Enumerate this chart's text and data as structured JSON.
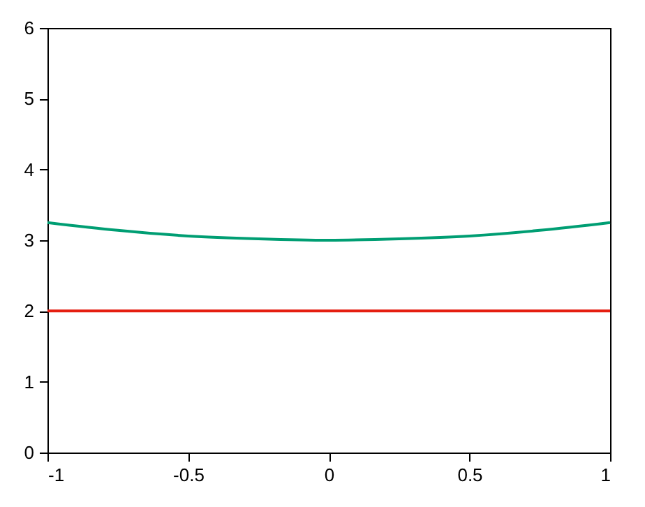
{
  "chart_data": {
    "type": "line",
    "x": [
      -1,
      -0.75,
      -0.5,
      -0.25,
      0,
      0.25,
      0.5,
      0.75,
      1
    ],
    "series": [
      {
        "color": "#009e73",
        "values": [
          3.25,
          3.14,
          3.06,
          3.02,
          3.0,
          3.02,
          3.06,
          3.14,
          3.25
        ]
      },
      {
        "color": "#e51e10",
        "values": [
          2,
          2,
          2,
          2,
          2,
          2,
          2,
          2,
          2
        ]
      }
    ],
    "xlim": [
      -1,
      1
    ],
    "xticks": [
      -1,
      -0.5,
      0,
      0.5,
      1
    ],
    "ylim": [
      0,
      6
    ],
    "yticks": [
      0,
      1,
      2,
      3,
      4,
      5,
      6
    ],
    "grid": false,
    "marker": "none",
    "line_style": "solid"
  }
}
